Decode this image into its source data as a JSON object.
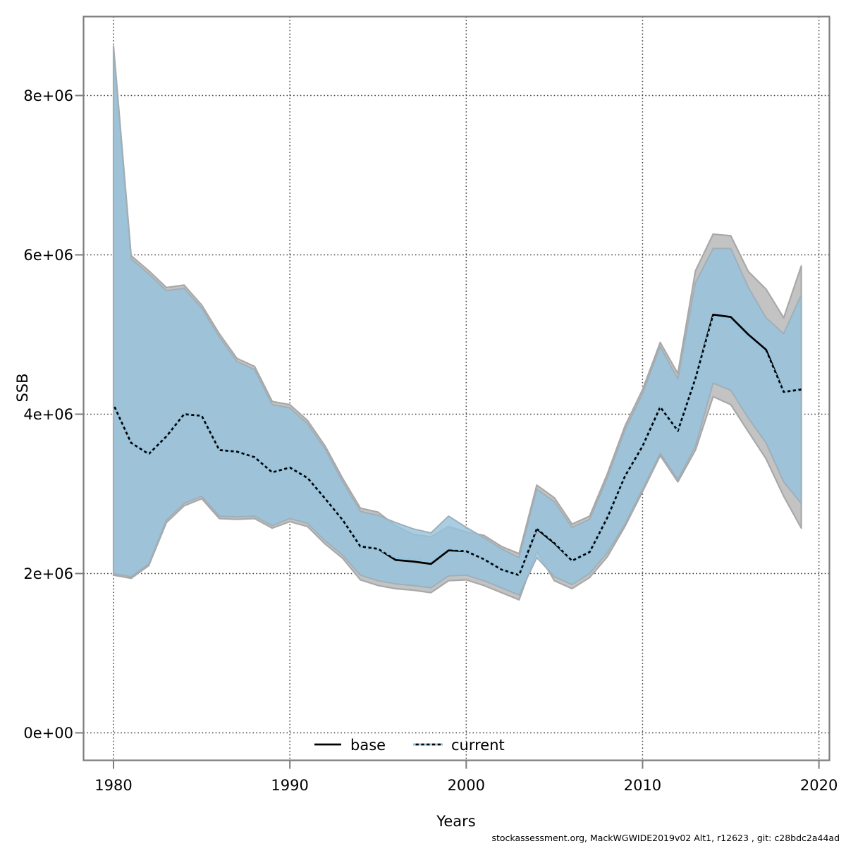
{
  "footer": "stockassessment.org, MackWGWIDE2019v02  Alt1, r12623 , git: c28bdc2a44ad",
  "chart_data": {
    "type": "line",
    "title": "",
    "xlabel": "Years",
    "ylabel": "SSB",
    "grid": true,
    "legend_position": "bottom-center",
    "xlim": [
      1978.3,
      2020.6
    ],
    "ylim": [
      -345000,
      9000000
    ],
    "x_ticks": [
      1980,
      1990,
      2000,
      2010,
      2020
    ],
    "y_tick_labels": [
      "0e+00",
      "2e+06",
      "4e+06",
      "6e+06",
      "8e+06"
    ],
    "y_tick_values": [
      0,
      2000000,
      4000000,
      6000000,
      8000000
    ],
    "years": [
      1980,
      1981,
      1982,
      1983,
      1984,
      1985,
      1986,
      1987,
      1988,
      1989,
      1990,
      1991,
      1992,
      1993,
      1994,
      1995,
      1996,
      1997,
      1998,
      1999,
      2000,
      2001,
      2002,
      2003,
      2004,
      2005,
      2006,
      2007,
      2008,
      2009,
      2010,
      2011,
      2012,
      2013,
      2014,
      2015,
      2016,
      2017,
      2018,
      2019
    ],
    "series": [
      {
        "name": "base",
        "line": "solid",
        "line_color": "#000000",
        "band_color": "#c3c3c3",
        "median": [
          4120000,
          3640000,
          3500000,
          3720000,
          4000000,
          3980000,
          3550000,
          3530000,
          3460000,
          3270000,
          3330000,
          3200000,
          2940000,
          2670000,
          2340000,
          2310000,
          2170000,
          2150000,
          2120000,
          2290000,
          2280000,
          2180000,
          2050000,
          1980000,
          2560000,
          2380000,
          2160000,
          2270000,
          2700000,
          3220000,
          3600000,
          4090000,
          3790000,
          4450000,
          5250000,
          5220000,
          5000000,
          4810000,
          4280000,
          4310000
        ],
        "ci_lower": [
          1980000,
          1940000,
          2100000,
          2640000,
          2850000,
          2940000,
          2690000,
          2680000,
          2690000,
          2570000,
          2650000,
          2590000,
          2370000,
          2190000,
          1920000,
          1850000,
          1810000,
          1790000,
          1760000,
          1910000,
          1920000,
          1850000,
          1760000,
          1670000,
          2280000,
          1910000,
          1810000,
          1950000,
          2210000,
          2590000,
          3030000,
          3480000,
          3150000,
          3550000,
          4220000,
          4120000,
          3780000,
          3440000,
          2970000,
          2570000
        ],
        "ci_upper": [
          8620000,
          5990000,
          5800000,
          5590000,
          5620000,
          5370000,
          5010000,
          4700000,
          4600000,
          4160000,
          4120000,
          3920000,
          3600000,
          3190000,
          2820000,
          2770000,
          2600000,
          2490000,
          2460000,
          2590000,
          2520000,
          2480000,
          2340000,
          2250000,
          3110000,
          2950000,
          2620000,
          2720000,
          3250000,
          3850000,
          4310000,
          4900000,
          4510000,
          5800000,
          6260000,
          6240000,
          5790000,
          5570000,
          5210000,
          5860000
        ]
      },
      {
        "name": "current",
        "line": "dotted",
        "line_color": "#8fc3e0",
        "band_color": "rgba(150,195,222,0.82)",
        "median": [
          4120000,
          3640000,
          3500000,
          3720000,
          4000000,
          3980000,
          3550000,
          3530000,
          3460000,
          3270000,
          3330000,
          3200000,
          2940000,
          2670000,
          2340000,
          2310000,
          2200000,
          2190000,
          2160000,
          2320000,
          2280000,
          2180000,
          2050000,
          1980000,
          2580000,
          2400000,
          2160000,
          2270000,
          2700000,
          3220000,
          3600000,
          4090000,
          3790000,
          4450000,
          5210000,
          5170000,
          4950000,
          4760000,
          4280000,
          4310000
        ],
        "ci_lower": [
          2000000,
          1960000,
          2120000,
          2670000,
          2880000,
          2970000,
          2720000,
          2710000,
          2720000,
          2600000,
          2690000,
          2630000,
          2410000,
          2230000,
          1980000,
          1910000,
          1870000,
          1850000,
          1820000,
          1970000,
          1980000,
          1910000,
          1820000,
          1730000,
          2200000,
          1960000,
          1860000,
          2000000,
          2260000,
          2620000,
          3060000,
          3510000,
          3180000,
          3600000,
          4390000,
          4300000,
          3950000,
          3640000,
          3150000,
          2880000
        ],
        "ci_upper": [
          8590000,
          5950000,
          5760000,
          5550000,
          5580000,
          5330000,
          4970000,
          4660000,
          4560000,
          4120000,
          4080000,
          3880000,
          3560000,
          3150000,
          2780000,
          2730000,
          2640000,
          2560000,
          2510000,
          2720000,
          2580000,
          2450000,
          2310000,
          2200000,
          3060000,
          2900000,
          2580000,
          2680000,
          3200000,
          3800000,
          4260000,
          4850000,
          4440000,
          5650000,
          6080000,
          6080000,
          5590000,
          5210000,
          5010000,
          5500000
        ]
      }
    ],
    "legend": [
      {
        "label": "base",
        "line_style": "solid",
        "color": "#000000"
      },
      {
        "label": "current",
        "line_style": "dotted",
        "color": "#8fc3e0"
      }
    ],
    "colors": {
      "base_band_fill": "#c3c3c3",
      "base_band_edge": "#a8a8a8",
      "current_band_fill": "rgba(150,195,222,0.82)",
      "current_band_edge": "#9fafb8",
      "base_line": "#000000",
      "current_line": "#8fc3e0",
      "grid": "#3f3f3f",
      "frame": "#7d7d7d",
      "tick": "#7d7d7d",
      "text": "#000000"
    }
  }
}
